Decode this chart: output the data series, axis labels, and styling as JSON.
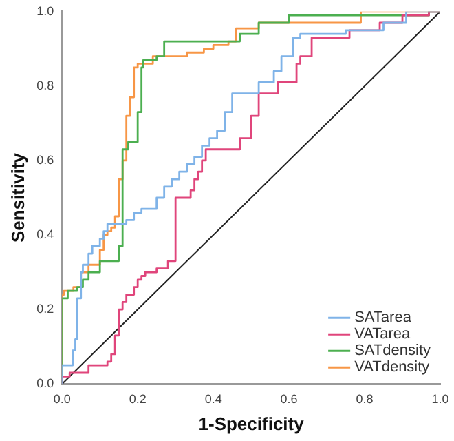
{
  "chart_data": {
    "type": "step",
    "xlabel": "1-Specificity",
    "ylabel": "Sensitivity",
    "xlim": [
      0,
      1
    ],
    "ylim": [
      0,
      1
    ],
    "xticks": [
      {
        "value": 0,
        "label": "0.0"
      },
      {
        "value": 0.2,
        "label": "0.2"
      },
      {
        "value": 0.4,
        "label": "0.4"
      },
      {
        "value": 0.6,
        "label": "0.6"
      },
      {
        "value": 0.8,
        "label": "0.8"
      },
      {
        "value": 1,
        "label": "1.0"
      }
    ],
    "yticks": [
      {
        "value": 0,
        "label": "0.0"
      },
      {
        "value": 0.2,
        "label": "0.2"
      },
      {
        "value": 0.4,
        "label": "0.4"
      },
      {
        "value": 0.6,
        "label": "0.6"
      },
      {
        "value": 0.8,
        "label": "0.8"
      },
      {
        "value": 1,
        "label": "1.0"
      }
    ],
    "grid": false,
    "legend": "bottom right",
    "marker": "none",
    "line_style": "solid",
    "series": [
      {
        "name": "SATarea",
        "color": "#7fb3e8",
        "x": [
          0,
          0.028,
          0.035,
          0.04,
          0.05,
          0.055,
          0.07,
          0.08,
          0.1,
          0.11,
          0.12,
          0.17,
          0.19,
          0.21,
          0.25,
          0.27,
          0.29,
          0.31,
          0.33,
          0.35,
          0.37,
          0.39,
          0.41,
          0.43,
          0.45,
          0.52,
          0.56,
          0.58,
          0.61,
          0.63,
          0.75,
          0.85,
          0.91,
          0.95,
          1
        ],
        "values": [
          0,
          0.05,
          0.09,
          0.12,
          0.23,
          0.3,
          0.32,
          0.35,
          0.37,
          0.39,
          0.41,
          0.43,
          0.44,
          0.46,
          0.47,
          0.5,
          0.53,
          0.55,
          0.57,
          0.59,
          0.61,
          0.64,
          0.66,
          0.68,
          0.73,
          0.78,
          0.81,
          0.84,
          0.88,
          0.93,
          0.94,
          0.95,
          0.97,
          1.0,
          1.0
        ]
      },
      {
        "name": "VATarea",
        "color": "#e0457b",
        "x": [
          0,
          0.02,
          0.07,
          0.12,
          0.13,
          0.14,
          0.15,
          0.16,
          0.17,
          0.19,
          0.2,
          0.21,
          0.22,
          0.25,
          0.28,
          0.3,
          0.34,
          0.35,
          0.36,
          0.37,
          0.38,
          0.47,
          0.5,
          0.52,
          0.57,
          0.62,
          0.63,
          0.66,
          0.76,
          0.84,
          0.9,
          0.97,
          1
        ],
        "values": [
          0,
          0.02,
          0.03,
          0.05,
          0.06,
          0.08,
          0.13,
          0.2,
          0.22,
          0.24,
          0.26,
          0.28,
          0.29,
          0.3,
          0.31,
          0.33,
          0.5,
          0.52,
          0.55,
          0.57,
          0.6,
          0.63,
          0.66,
          0.72,
          0.78,
          0.81,
          0.86,
          0.88,
          0.93,
          0.95,
          0.97,
          0.99,
          1.0
        ]
      },
      {
        "name": "SATdensity",
        "color": "#4caf50",
        "x": [
          0,
          0.015,
          0.04,
          0.055,
          0.07,
          0.1,
          0.15,
          0.16,
          0.175,
          0.2,
          0.21,
          0.215,
          0.25,
          0.27,
          0.47,
          0.52,
          0.6,
          0.97,
          1
        ],
        "values": [
          0,
          0.23,
          0.25,
          0.26,
          0.28,
          0.3,
          0.33,
          0.37,
          0.63,
          0.65,
          0.73,
          0.85,
          0.87,
          0.88,
          0.92,
          0.94,
          0.97,
          0.99,
          1.0
        ]
      },
      {
        "name": "VATdensity",
        "color": "#f79646",
        "x": [
          0,
          0.005,
          0.03,
          0.05,
          0.07,
          0.1,
          0.11,
          0.12,
          0.13,
          0.14,
          0.15,
          0.16,
          0.17,
          0.18,
          0.19,
          0.2,
          0.24,
          0.33,
          0.375,
          0.4,
          0.44,
          0.46,
          0.52,
          0.79,
          0.97,
          1
        ],
        "values": [
          0,
          0.24,
          0.25,
          0.26,
          0.3,
          0.32,
          0.36,
          0.4,
          0.41,
          0.42,
          0.45,
          0.55,
          0.6,
          0.72,
          0.77,
          0.85,
          0.86,
          0.88,
          0.89,
          0.9,
          0.91,
          0.92,
          0.955,
          0.97,
          1.0,
          1.0
        ]
      },
      {
        "type": "line",
        "color": "#222222",
        "x": [
          0,
          1
        ],
        "values": [
          0,
          1
        ]
      }
    ]
  }
}
